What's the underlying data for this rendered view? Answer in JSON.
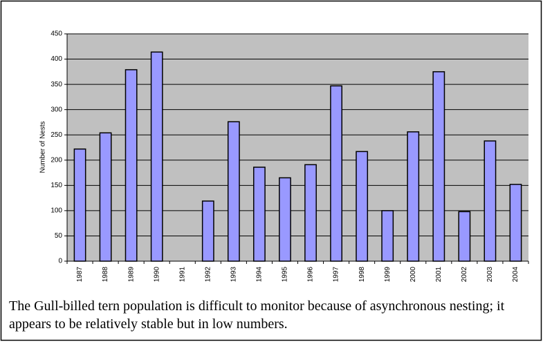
{
  "chart_data": {
    "type": "bar",
    "y_label": "Number of Nests",
    "categories": [
      "1987",
      "1988",
      "1989",
      "1990",
      "1991",
      "1992",
      "1993",
      "1994",
      "1995",
      "1996",
      "1997",
      "1998",
      "1999",
      "2000",
      "2001",
      "2002",
      "2003",
      "2004"
    ],
    "values": [
      222,
      254,
      379,
      414,
      null,
      119,
      276,
      186,
      165,
      191,
      347,
      217,
      100,
      256,
      375,
      98,
      238,
      152
    ],
    "color": "#9999ff",
    "ylim": [
      0,
      450
    ],
    "yticks": [
      0,
      50,
      100,
      150,
      200,
      250,
      300,
      350,
      400,
      450
    ],
    "grid": true,
    "caption": "The Gull-billed tern population is difficult to monitor because of asynchronous nesting; it appears to be relatively stable but in low numbers."
  }
}
